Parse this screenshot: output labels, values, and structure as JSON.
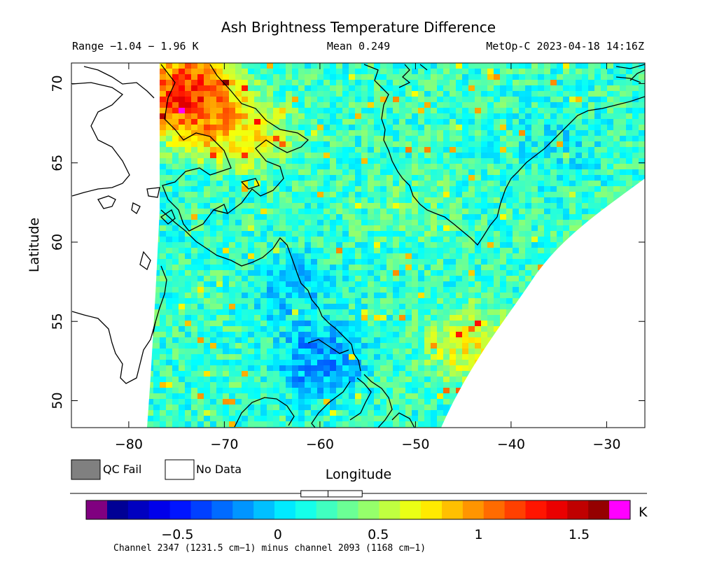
{
  "chart_data": {
    "type": "heatmap",
    "title": "Ash Brightness Temperature Difference",
    "subtitle_left": "Range −1.04 − 1.96 K",
    "subtitle_center": "Mean 0.249",
    "subtitle_right": "MetOp-C 2023-04-18 14:16Z",
    "xlabel": "Longitude",
    "ylabel": "Latitude",
    "xlim": [
      -86,
      -26
    ],
    "ylim": [
      48.3,
      71.3
    ],
    "x_ticks": [
      -80,
      -70,
      -60,
      -50,
      -40,
      -30
    ],
    "x_tick_labels": [
      "−80",
      "−70",
      "−60",
      "−50",
      "−40",
      "−30"
    ],
    "y_ticks": [
      50,
      55,
      60,
      65,
      70
    ],
    "y_tick_labels": [
      "50",
      "55",
      "60",
      "65",
      "70"
    ],
    "grid": false,
    "legend": [
      {
        "label": "QC Fail",
        "color": "#808080"
      },
      {
        "label": "No Data",
        "color": "#ffffff"
      }
    ],
    "colorbar": {
      "min": -0.85,
      "max": 1.65,
      "unit": "K",
      "ticks": [
        -0.5,
        0,
        0.5,
        1,
        1.5
      ],
      "tick_labels": [
        "−0.5",
        "0",
        "0.5",
        "1",
        "1.5"
      ],
      "under_color": "#800080",
      "over_color": "#ff00ff",
      "colors": [
        "#000080",
        "#0000ff",
        "#0080ff",
        "#00ffff",
        "#80ff80",
        "#ffff00",
        "#ff8000",
        "#ff0000",
        "#800000"
      ],
      "caption": "Channel 2347 (1231.5 cm−1) minus channel 2093 (1168 cm−1)",
      "boxplot": {
        "low": -0.08,
        "q1": 0.08,
        "median": 0.25,
        "q3": 0.42,
        "high": 0.58
      }
    },
    "swath_description": "Satellite swath over Labrador Sea, Baffin Bay and Greenland; values mostly 0–0.5 K, hot spot 1–1.9 K near 70°N 75°W, low values −0.4 K near 52°N 60°W",
    "regions": [
      {
        "lon": -74,
        "lat": 69.5,
        "value": 1.7
      },
      {
        "lon": -72,
        "lat": 68.0,
        "value": 1.3
      },
      {
        "lon": -68,
        "lat": 67.0,
        "value": 0.9
      },
      {
        "lon": -60,
        "lat": 52.5,
        "value": -0.35
      },
      {
        "lon": -63,
        "lat": 57.0,
        "value": -0.1
      },
      {
        "lon": -44,
        "lat": 53.5,
        "value": 0.85
      },
      {
        "lon": -50,
        "lat": 62.0,
        "value": 0.35
      },
      {
        "lon": -35,
        "lat": 66.0,
        "value": 0.05
      }
    ]
  }
}
